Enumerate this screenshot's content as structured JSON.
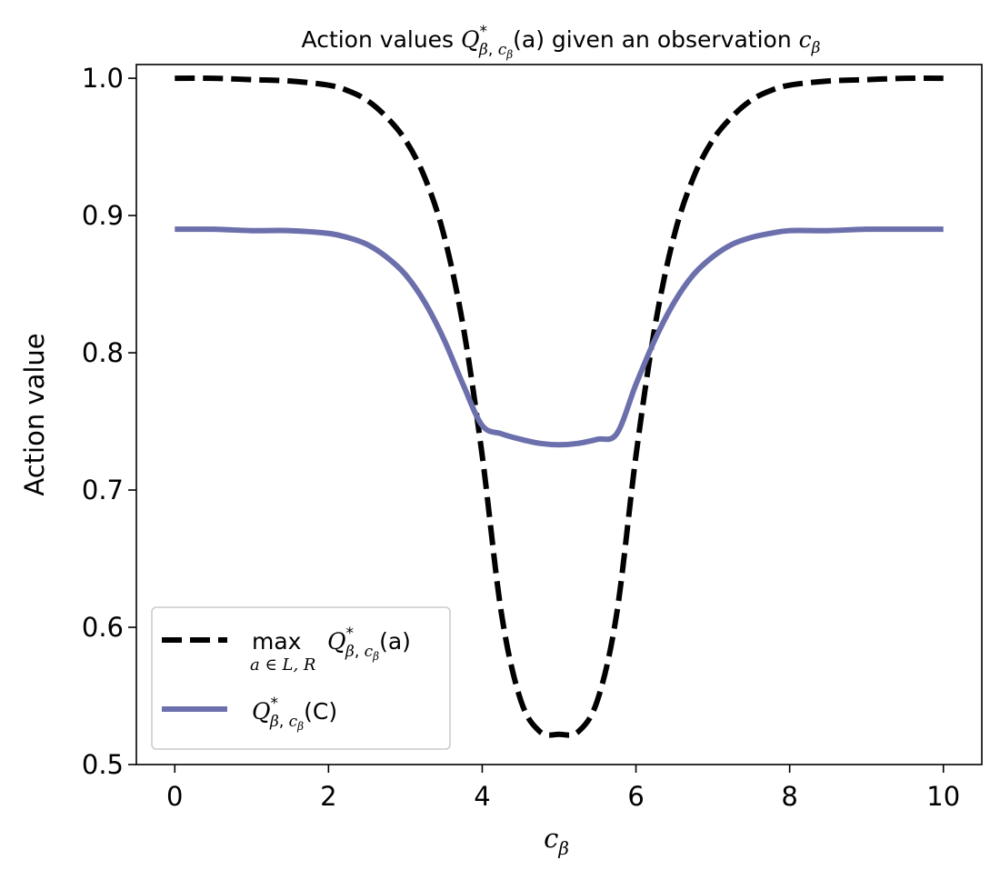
{
  "chart_data": {
    "type": "line",
    "title": {
      "prefix": "Action values ",
      "q_letter": "Q",
      "q_sup": "*",
      "q_sub_beta": "β",
      "q_sub_comma": ", ",
      "q_sub_c": "c",
      "q_sub_c_sub": "β",
      "q_arg": "(a)",
      "middle": " given an observation ",
      "c_letter": "c",
      "c_sub": "β"
    },
    "xlabel": {
      "letter": "c",
      "sub": "β"
    },
    "ylabel": "Action value",
    "xlim": [
      -0.5,
      10.5
    ],
    "ylim": [
      0.5,
      1.01
    ],
    "xticks": [
      0,
      2,
      4,
      6,
      8,
      10
    ],
    "xtick_labels": [
      "0",
      "2",
      "4",
      "6",
      "8",
      "10"
    ],
    "yticks": [
      0.5,
      0.6,
      0.7,
      0.8,
      0.9,
      1.0
    ],
    "ytick_labels": [
      "0.5",
      "0.6",
      "0.7",
      "0.8",
      "0.9",
      "1.0"
    ],
    "legend_position": "lower-left",
    "x": [
      0,
      0.5,
      1,
      1.5,
      2,
      2.25,
      2.5,
      2.75,
      3,
      3.25,
      3.5,
      3.75,
      4,
      4.25,
      4.5,
      4.75,
      5,
      5.25,
      5.5,
      5.75,
      6,
      6.25,
      6.5,
      6.75,
      7,
      7.25,
      7.5,
      7.75,
      8,
      8.5,
      9,
      9.5,
      10
    ],
    "series": [
      {
        "name": "max Q*(a)",
        "style": "dashed",
        "color": "#000000",
        "legend": {
          "op": "max",
          "op_sub": "a ∈ L, R",
          "q_letter": "Q",
          "q_sup": "*",
          "q_sub_beta": "β",
          "q_sub_comma": ", ",
          "q_sub_c": "c",
          "q_sub_c_sub": "β",
          "q_arg": "(a)"
        },
        "values": [
          1.0,
          1.0,
          0.999,
          0.998,
          0.995,
          0.991,
          0.984,
          0.972,
          0.955,
          0.928,
          0.886,
          0.82,
          0.725,
          0.61,
          0.547,
          0.524,
          0.522,
          0.524,
          0.547,
          0.61,
          0.725,
          0.82,
          0.886,
          0.928,
          0.955,
          0.972,
          0.984,
          0.991,
          0.995,
          0.998,
          0.999,
          1.0,
          1.0
        ]
      },
      {
        "name": "Q*(C)",
        "style": "solid",
        "color": "#6b6fab",
        "legend": {
          "q_letter": "Q",
          "q_sup": "*",
          "q_sub_beta": "β",
          "q_sub_comma": ", ",
          "q_sub_c": "c",
          "q_sub_c_sub": "β",
          "q_arg": "(C)"
        },
        "values": [
          0.89,
          0.89,
          0.889,
          0.889,
          0.887,
          0.884,
          0.879,
          0.87,
          0.857,
          0.837,
          0.81,
          0.777,
          0.747,
          0.741,
          0.737,
          0.734,
          0.733,
          0.734,
          0.737,
          0.741,
          0.777,
          0.81,
          0.837,
          0.857,
          0.87,
          0.879,
          0.884,
          0.887,
          0.889,
          0.889,
          0.89,
          0.89,
          0.89
        ]
      }
    ]
  }
}
